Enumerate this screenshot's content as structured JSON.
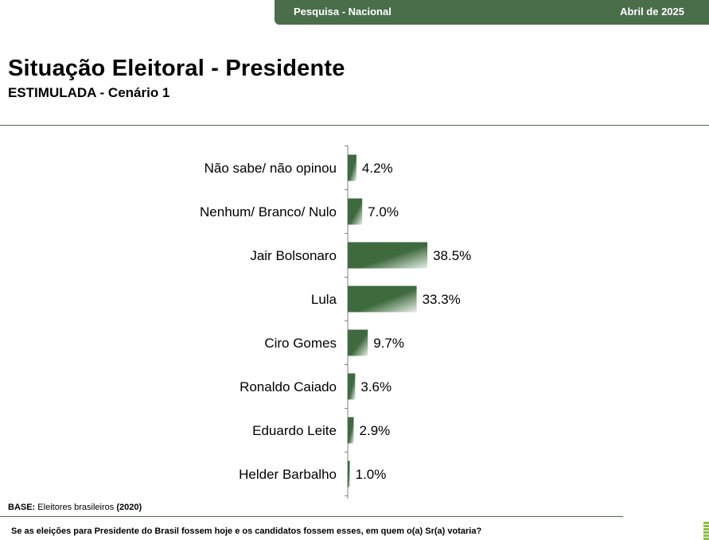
{
  "header": {
    "survey_label": "Pesquisa - Nacional",
    "date_label": "Abril de 2025"
  },
  "page": {
    "title": "Situação Eleitoral - Presidente",
    "subtitle": "ESTIMULADA - Cenário 1"
  },
  "footer": {
    "base_label": "BASE:",
    "base_text": "Eleitores brasileiros",
    "base_year": "(2020)",
    "question": "Se as eleições para Presidente do Brasil fossem hoje e os candidatos fossem esses, em quem o(a) Sr(a) votaria?"
  },
  "colors": {
    "brand": "#4a6e4a",
    "bar_dark": "#3e6a3e",
    "bar_light": "#e8f0e8",
    "accent": "#8fbf3f"
  },
  "chart_data": {
    "type": "bar",
    "orientation": "horizontal",
    "categories": [
      "Não sabe/ não opinou",
      "Nenhum/ Branco/ Nulo",
      "Jair Bolsonaro",
      "Lula",
      "Ciro Gomes",
      "Ronaldo Caiado",
      "Eduardo Leite",
      "Helder Barbalho"
    ],
    "values": [
      4.2,
      7.0,
      38.5,
      33.3,
      9.7,
      3.6,
      2.9,
      1.0
    ],
    "value_labels": [
      "4.2%",
      "7.0%",
      "38.5%",
      "33.3%",
      "9.7%",
      "3.6%",
      "2.9%",
      "1.0%"
    ],
    "unit": "%",
    "grid": false,
    "legend": "none"
  }
}
